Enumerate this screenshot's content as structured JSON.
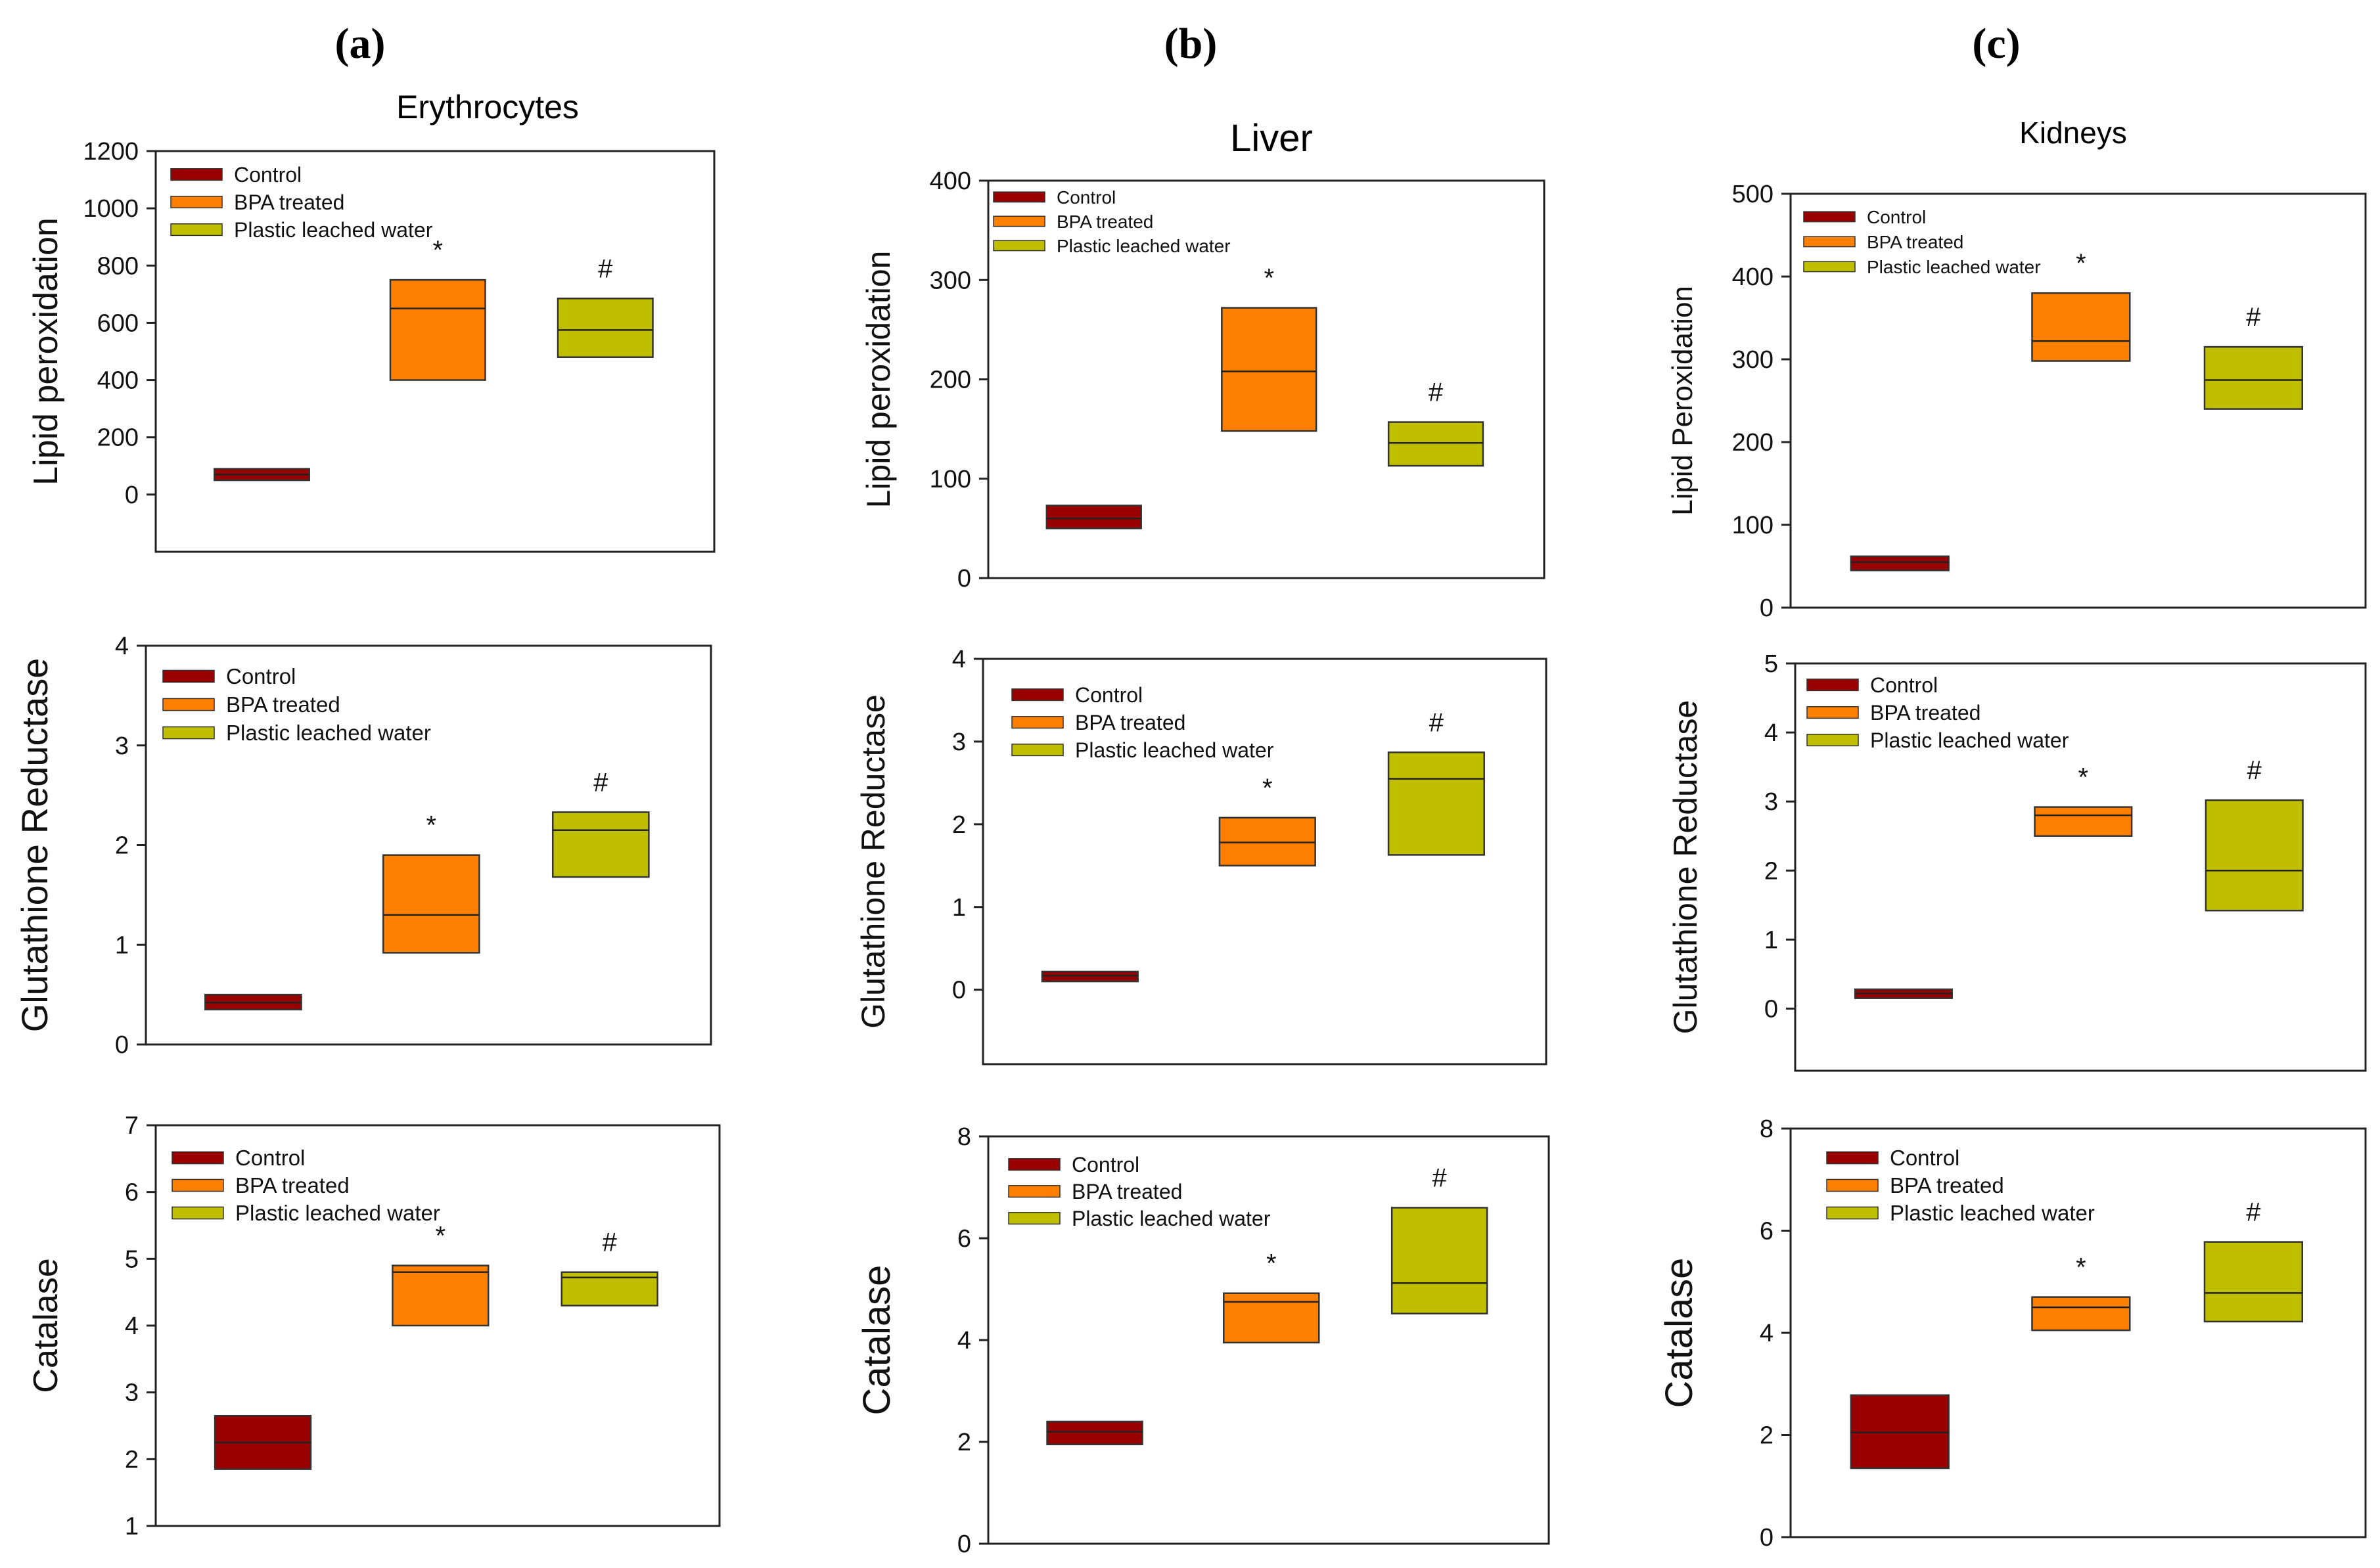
{
  "columns": [
    {
      "tag": "(a)",
      "title": "Erythrocytes"
    },
    {
      "tag": "(b)",
      "title": "Liver"
    },
    {
      "tag": "(c)",
      "title": "Kidneys"
    }
  ],
  "legend": [
    "Control",
    "BPA treated",
    "Plastic leached water"
  ],
  "colors": {
    "control": "#990000",
    "bpa": "#ff8000",
    "plw": "#bfbf00",
    "box_edge": "#333333",
    "axis": "#222222"
  },
  "chart_data": [
    {
      "id": "a1",
      "type": "box",
      "ylabel": "Lipid peroxidation",
      "ylim": [
        -200,
        1200
      ],
      "yticks": [
        0,
        200,
        400,
        600,
        800,
        1000,
        1200
      ],
      "series": [
        {
          "name": "Control",
          "q1": 50,
          "median": 70,
          "q3": 90
        },
        {
          "name": "BPA treated",
          "q1": 400,
          "median": 650,
          "q3": 750
        },
        {
          "name": "Plastic leached water",
          "q1": 480,
          "median": 575,
          "q3": 685
        }
      ],
      "markers": [
        "",
        "*",
        "#"
      ]
    },
    {
      "id": "b1",
      "type": "box",
      "ylabel": "Lipid peroxidation",
      "ylim": [
        0,
        400
      ],
      "yticks": [
        0,
        100,
        200,
        300,
        400
      ],
      "series": [
        {
          "name": "Control",
          "q1": 50,
          "median": 60,
          "q3": 73
        },
        {
          "name": "BPA treated",
          "q1": 148,
          "median": 208,
          "q3": 272
        },
        {
          "name": "Plastic leached water",
          "q1": 113,
          "median": 136,
          "q3": 157
        }
      ],
      "markers": [
        "",
        "*",
        "#"
      ]
    },
    {
      "id": "c1",
      "type": "box",
      "ylabel": "Lipid Peroxidation",
      "ylim": [
        0,
        500
      ],
      "yticks": [
        0,
        100,
        200,
        300,
        400,
        500
      ],
      "series": [
        {
          "name": "Control",
          "q1": 45,
          "median": 55,
          "q3": 62
        },
        {
          "name": "BPA treated",
          "q1": 298,
          "median": 322,
          "q3": 380
        },
        {
          "name": "Plastic leached water",
          "q1": 240,
          "median": 275,
          "q3": 315
        }
      ],
      "markers": [
        "",
        "*",
        "#"
      ]
    },
    {
      "id": "a2",
      "type": "box",
      "ylabel": "Glutathione Reductase",
      "ylim": [
        0,
        4
      ],
      "yticks": [
        0,
        1,
        2,
        3,
        4
      ],
      "series": [
        {
          "name": "Control",
          "q1": 0.35,
          "median": 0.42,
          "q3": 0.5
        },
        {
          "name": "BPA treated",
          "q1": 0.92,
          "median": 1.3,
          "q3": 1.9
        },
        {
          "name": "Plastic leached water",
          "q1": 1.68,
          "median": 2.15,
          "q3": 2.33
        }
      ],
      "markers": [
        "",
        "*",
        "#"
      ]
    },
    {
      "id": "b2",
      "type": "box",
      "ylabel": "Glutathione Reductase",
      "ylim": [
        -0.9,
        4
      ],
      "yticks": [
        0,
        1,
        2,
        3,
        4
      ],
      "series": [
        {
          "name": "Control",
          "q1": 0.1,
          "median": 0.17,
          "q3": 0.22
        },
        {
          "name": "BPA treated",
          "q1": 1.5,
          "median": 1.78,
          "q3": 2.08
        },
        {
          "name": "Plastic leached water",
          "q1": 1.63,
          "median": 2.55,
          "q3": 2.87
        }
      ],
      "markers": [
        "",
        "*",
        "#"
      ]
    },
    {
      "id": "c2",
      "type": "box",
      "ylabel": "Glutathione Reductase",
      "ylim": [
        -0.9,
        5
      ],
      "yticks": [
        0,
        1,
        2,
        3,
        4,
        5
      ],
      "series": [
        {
          "name": "Control",
          "q1": 0.15,
          "median": 0.22,
          "q3": 0.28
        },
        {
          "name": "BPA treated",
          "q1": 2.5,
          "median": 2.8,
          "q3": 2.92
        },
        {
          "name": "Plastic leached water",
          "q1": 1.42,
          "median": 2.0,
          "q3": 3.02
        }
      ],
      "markers": [
        "",
        "*",
        "#"
      ]
    },
    {
      "id": "a3",
      "type": "box",
      "ylabel": "Catalase",
      "ylim": [
        1,
        7
      ],
      "yticks": [
        1,
        2,
        3,
        4,
        5,
        6,
        7
      ],
      "series": [
        {
          "name": "Control",
          "q1": 1.85,
          "median": 2.25,
          "q3": 2.65
        },
        {
          "name": "BPA treated",
          "q1": 4.0,
          "median": 4.8,
          "q3": 4.9
        },
        {
          "name": "Plastic leached water",
          "q1": 4.3,
          "median": 4.72,
          "q3": 4.8
        }
      ],
      "markers": [
        "",
        "*",
        "#"
      ]
    },
    {
      "id": "b3",
      "type": "box",
      "ylabel": "Catalase",
      "ylim": [
        0,
        8
      ],
      "yticks": [
        0,
        2,
        4,
        6,
        8
      ],
      "series": [
        {
          "name": "Control",
          "q1": 1.95,
          "median": 2.2,
          "q3": 2.4
        },
        {
          "name": "BPA treated",
          "q1": 3.95,
          "median": 4.75,
          "q3": 4.92
        },
        {
          "name": "Plastic leached water",
          "q1": 4.52,
          "median": 5.12,
          "q3": 6.6
        }
      ],
      "markers": [
        "",
        "*",
        "#"
      ]
    },
    {
      "id": "c3",
      "type": "box",
      "ylabel": "Catalase",
      "ylim": [
        0,
        8
      ],
      "yticks": [
        0,
        2,
        4,
        6,
        8
      ],
      "series": [
        {
          "name": "Control",
          "q1": 1.35,
          "median": 2.05,
          "q3": 2.78
        },
        {
          "name": "BPA treated",
          "q1": 4.05,
          "median": 4.5,
          "q3": 4.7
        },
        {
          "name": "Plastic leached water",
          "q1": 4.22,
          "median": 4.78,
          "q3": 5.78
        }
      ],
      "markers": [
        "",
        "*",
        "#"
      ]
    }
  ]
}
